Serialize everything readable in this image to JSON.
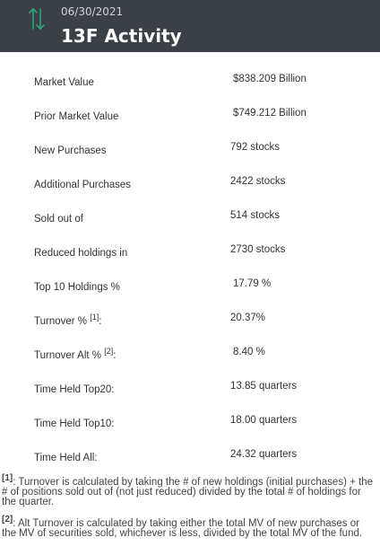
{
  "header": {
    "date": "06/30/2021",
    "title": "13F Activity",
    "icon": "up-down-arrows-icon",
    "icon_color": "#2fa37c",
    "background": "#3b3f46"
  },
  "rows": [
    {
      "label": "Market Value",
      "sup": "",
      "suffix": "",
      "value": "$838.209 Billion"
    },
    {
      "label": "Prior Market Value",
      "sup": "",
      "suffix": "",
      "value": "$749.212 Billion"
    },
    {
      "label": "New Purchases",
      "sup": "",
      "suffix": "",
      "value": "792 stocks"
    },
    {
      "label": "Additional Purchases",
      "sup": "",
      "suffix": "",
      "value": "2422 stocks"
    },
    {
      "label": "Sold out of",
      "sup": "",
      "suffix": "",
      "value": "514 stocks"
    },
    {
      "label": "Reduced holdings in",
      "sup": "",
      "suffix": "",
      "value": "2730 stocks"
    },
    {
      "label": "Top 10 Holdings %",
      "sup": "",
      "suffix": "",
      "value": "17.79 %"
    },
    {
      "label": "Turnover % ",
      "sup": "[1]",
      "suffix": ":",
      "value": "20.37%"
    },
    {
      "label": "Turnover Alt % ",
      "sup": "[2]",
      "suffix": ":",
      "value": "8.40 %"
    },
    {
      "label": "Time Held Top20:",
      "sup": "",
      "suffix": "",
      "value": "13.85 quarters"
    },
    {
      "label": "Time Held Top10:",
      "sup": "",
      "suffix": "",
      "value": "18.00 quarters"
    },
    {
      "label": "Time Held All:",
      "sup": "",
      "suffix": "",
      "value": "24.32 quarters"
    }
  ],
  "notes": [
    {
      "ref": "[1]",
      "text": ": Turnover is calculated by taking the # of new holdings (initial purchases) + the # of positions sold out of (not just reduced) divided by the total # of holdings for the quarter."
    },
    {
      "ref": "[2]",
      "text": ": Alt Turnover is calculated by taking either the total MV of new purchases or the MV of securities sold, whichever is less, divided by the total MV of the fund."
    }
  ]
}
